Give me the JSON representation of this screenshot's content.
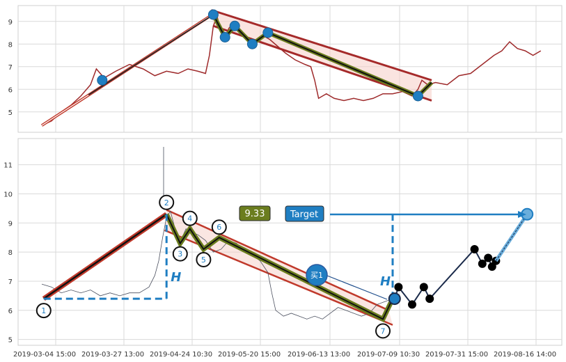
{
  "chart_data": [
    {
      "type": "line",
      "panel": "top",
      "ylim": [
        4.1,
        9.7
      ],
      "yticks": [
        "5",
        "6",
        "7",
        "8",
        "9"
      ],
      "grid": true,
      "series": [
        {
          "points": [
            [
              0,
              4.4
            ],
            [
              5,
              4.6
            ],
            [
              10,
              5.0
            ],
            [
              15,
              5.3
            ],
            [
              20,
              5.7
            ],
            [
              25,
              6.2
            ],
            [
              28,
              6.9
            ],
            [
              32,
              6.5
            ],
            [
              38,
              6.8
            ],
            [
              45,
              7.1
            ],
            [
              52,
              6.9
            ],
            [
              58,
              6.6
            ],
            [
              64,
              6.8
            ],
            [
              70,
              6.7
            ],
            [
              75,
              6.9
            ],
            [
              80,
              6.8
            ],
            [
              84,
              6.7
            ],
            [
              86,
              7.5
            ],
            [
              88,
              8.8
            ],
            [
              90,
              9.2
            ],
            [
              92,
              8.5
            ],
            [
              94,
              8.3
            ],
            [
              96,
              8.7
            ],
            [
              98,
              8.9
            ],
            [
              102,
              8.5
            ],
            [
              106,
              8.2
            ],
            [
              108,
              7.9
            ],
            [
              110,
              8.2
            ],
            [
              113,
              8.4
            ],
            [
              117,
              8.2
            ],
            [
              121,
              7.9
            ],
            [
              125,
              7.6
            ],
            [
              130,
              7.3
            ],
            [
              135,
              7.1
            ],
            [
              138,
              7.0
            ],
            [
              140,
              6.4
            ],
            [
              142,
              5.6
            ],
            [
              146,
              5.8
            ],
            [
              150,
              5.6
            ],
            [
              155,
              5.5
            ],
            [
              160,
              5.6
            ],
            [
              165,
              5.5
            ],
            [
              170,
              5.6
            ],
            [
              175,
              5.8
            ],
            [
              180,
              5.8
            ],
            [
              185,
              5.9
            ],
            [
              190,
              5.7
            ],
            [
              193,
              6.0
            ],
            [
              195,
              6.4
            ],
            [
              198,
              6.2
            ],
            [
              202,
              6.3
            ],
            [
              208,
              6.2
            ],
            [
              214,
              6.6
            ],
            [
              220,
              6.7
            ],
            [
              226,
              7.1
            ],
            [
              232,
              7.5
            ],
            [
              236,
              7.7
            ],
            [
              240,
              8.1
            ],
            [
              244,
              7.8
            ],
            [
              248,
              7.7
            ],
            [
              252,
              7.5
            ],
            [
              256,
              7.7
            ]
          ],
          "color": "#9e2a2b"
        }
      ],
      "trend_line_start": [
        0,
        4.4
      ],
      "trend_line_end": [
        88,
        9.3
      ],
      "channel_upper": [
        [
          87,
          9.5
        ],
        [
          200,
          6.4
        ]
      ],
      "channel_lower": [
        [
          88,
          8.8
        ],
        [
          200,
          5.5
        ]
      ],
      "wave_points": [
        [
          88,
          9.3
        ],
        [
          94,
          8.3
        ],
        [
          99,
          8.8
        ],
        [
          108,
          8.0
        ],
        [
          116,
          8.5
        ],
        [
          193,
          5.7
        ],
        [
          200,
          6.3
        ]
      ],
      "markers": [
        [
          31,
          6.4
        ],
        [
          88,
          9.3
        ],
        [
          94,
          8.3
        ],
        [
          99,
          8.8
        ],
        [
          108,
          8.0
        ],
        [
          116,
          8.5
        ],
        [
          193,
          5.7
        ]
      ]
    },
    {
      "type": "line",
      "panel": "bottom",
      "ylim": [
        4.8,
        11.9
      ],
      "yticks": [
        "5",
        "6",
        "7",
        "8",
        "9",
        "10",
        "11"
      ],
      "xticks": [
        "2019-03-04 15:00",
        "2019-03-27 13:00",
        "2019-04-24 10:30",
        "2019-05-20 15:00",
        "2019-06-13 13:00",
        "2019-07-09 10:30",
        "2019-07-31 15:00",
        "2019-08-16 14:00"
      ],
      "grid": true,
      "series": [
        {
          "points": [
            [
              0,
              6.9
            ],
            [
              5,
              6.8
            ],
            [
              10,
              6.6
            ],
            [
              15,
              6.7
            ],
            [
              20,
              6.6
            ],
            [
              25,
              6.7
            ],
            [
              30,
              6.5
            ],
            [
              35,
              6.6
            ],
            [
              40,
              6.5
            ],
            [
              45,
              6.6
            ],
            [
              50,
              6.6
            ],
            [
              55,
              6.8
            ],
            [
              58,
              7.2
            ],
            [
              60,
              7.7
            ],
            [
              62,
              8.5
            ],
            [
              64,
              9.2
            ],
            [
              66,
              9.4
            ],
            [
              68,
              8.9
            ],
            [
              70,
              8.4
            ],
            [
              72,
              8.5
            ],
            [
              74,
              8.8
            ],
            [
              76,
              8.7
            ],
            [
              80,
              8.6
            ],
            [
              84,
              8.4
            ],
            [
              88,
              8.0
            ],
            [
              92,
              8.1
            ],
            [
              96,
              8.4
            ],
            [
              100,
              8.3
            ],
            [
              104,
              8.0
            ],
            [
              108,
              7.9
            ],
            [
              112,
              7.7
            ],
            [
              116,
              7.3
            ],
            [
              118,
              6.6
            ],
            [
              120,
              6.0
            ],
            [
              124,
              5.8
            ],
            [
              128,
              5.9
            ],
            [
              132,
              5.8
            ],
            [
              136,
              5.7
            ],
            [
              140,
              5.8
            ],
            [
              144,
              5.7
            ],
            [
              148,
              5.9
            ],
            [
              152,
              6.1
            ],
            [
              156,
              6.0
            ],
            [
              160,
              5.9
            ],
            [
              164,
              5.8
            ],
            [
              168,
              5.9
            ],
            [
              172,
              6.2
            ],
            [
              176,
              6.3
            ],
            [
              180,
              6.4
            ]
          ],
          "color": "#4a4f5e"
        }
      ],
      "wave_points": [
        [
          1,
          6.4
        ],
        [
          64,
          9.3
        ],
        [
          71,
          8.3
        ],
        [
          76,
          8.8
        ],
        [
          83,
          8.1
        ],
        [
          91,
          8.5
        ],
        [
          175,
          5.7
        ],
        [
          180,
          6.4
        ]
      ],
      "wave_labels": [
        "1",
        "2",
        "3",
        "4",
        "5",
        "6",
        "7"
      ],
      "forecast_points": [
        [
          181,
          6.4
        ],
        [
          183,
          6.8
        ],
        [
          190,
          6.2
        ],
        [
          196,
          6.8
        ],
        [
          199,
          6.4
        ],
        [
          222,
          8.1
        ],
        [
          226,
          7.6
        ],
        [
          229,
          7.8
        ],
        [
          231,
          7.5
        ],
        [
          233,
          7.7
        ],
        [
          249,
          9.3
        ]
      ],
      "level_value": "9.33",
      "target_label": "Target",
      "buy_label": "买1",
      "height_label": "H"
    }
  ]
}
